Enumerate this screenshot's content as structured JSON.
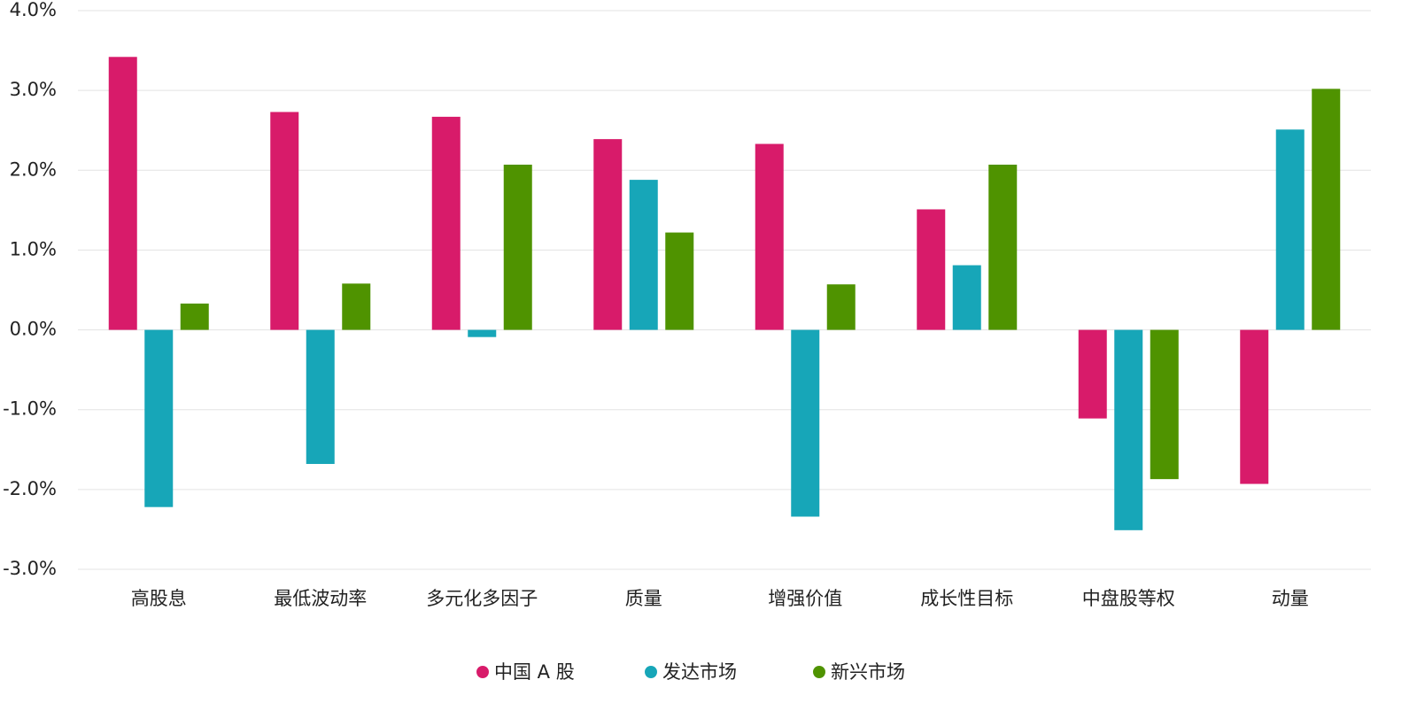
{
  "chart_data": {
    "type": "bar",
    "categories": [
      "高股息",
      "最低波动率",
      "多元化多因子",
      "质量",
      "增强价值",
      "成长性目标",
      "中盘股等权",
      "动量"
    ],
    "series": [
      {
        "name": "中国 A 股",
        "color": "#d81b6a",
        "values": [
          3.42,
          2.73,
          2.67,
          2.39,
          2.33,
          1.51,
          -1.11,
          -1.93
        ]
      },
      {
        "name": "发达市场",
        "color": "#17a6b8",
        "values": [
          -2.22,
          -1.68,
          -0.09,
          1.88,
          -2.34,
          0.81,
          -2.51,
          2.51
        ]
      },
      {
        "name": "新兴市场",
        "color": "#4f9300",
        "values": [
          0.33,
          0.58,
          2.07,
          1.22,
          0.57,
          2.07,
          -1.87,
          3.02
        ]
      }
    ],
    "ylim": [
      -3,
      4
    ],
    "yticks": [
      {
        "value": -3,
        "label": "-3.0%"
      },
      {
        "value": -2,
        "label": "-2.0%"
      },
      {
        "value": -1,
        "label": "-1.0%"
      },
      {
        "value": 0,
        "label": "0.0%"
      },
      {
        "value": 1,
        "label": "1.0%"
      },
      {
        "value": 2,
        "label": "2.0%"
      },
      {
        "value": 3,
        "label": "3.0%"
      },
      {
        "value": 4,
        "label": "4.0%"
      }
    ],
    "grid": true,
    "legend": "bottom"
  }
}
